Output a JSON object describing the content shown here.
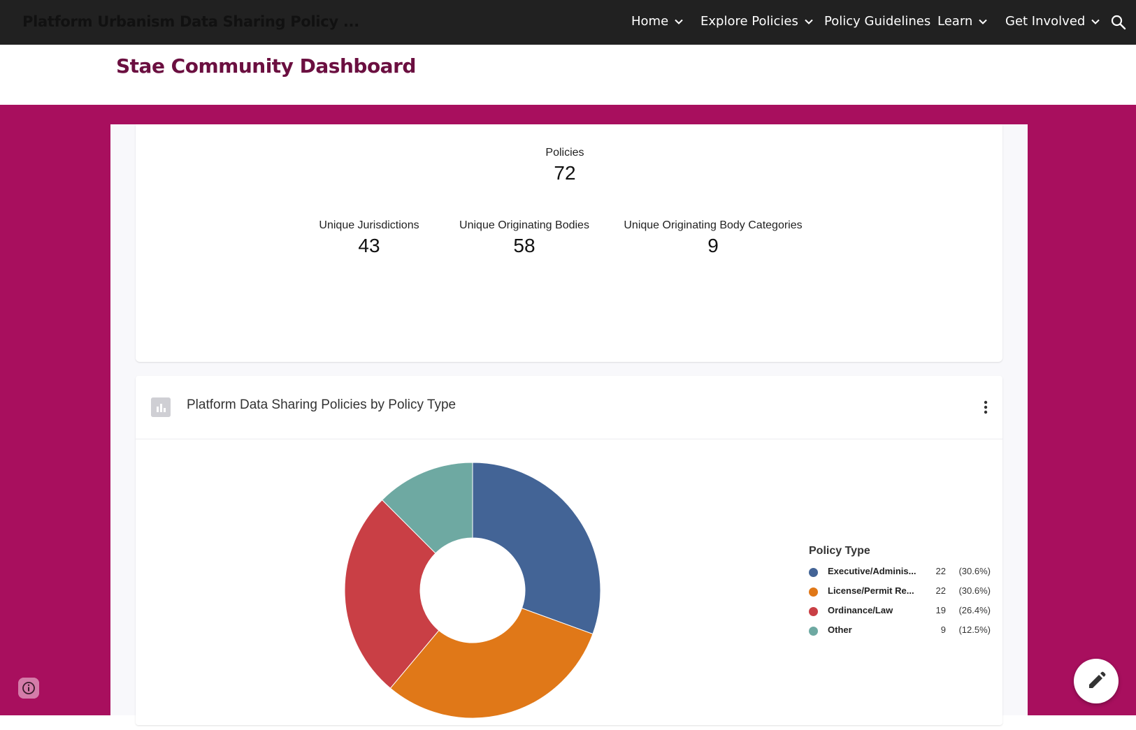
{
  "site": {
    "title": "Platform Urbanism Data Sharing Policy ..."
  },
  "nav": {
    "items": [
      {
        "label": "Home",
        "has_menu": true
      },
      {
        "label": "Explore Policies",
        "has_menu": true
      },
      {
        "label": "Policy Guidelines",
        "has_menu": false
      },
      {
        "label": "Learn",
        "has_menu": true
      },
      {
        "label": "Get Involved",
        "has_menu": true
      }
    ],
    "search_icon": "search-icon"
  },
  "page": {
    "title": "Stae Community Dashboard"
  },
  "stats": {
    "policies": {
      "label": "Policies",
      "value": "72"
    },
    "jurisdictions": {
      "label": "Unique Jurisdictions",
      "value": "43"
    },
    "bodies": {
      "label": "Unique Originating Bodies",
      "value": "58"
    },
    "body_categories": {
      "label": "Unique Originating Body Categories",
      "value": "9"
    }
  },
  "chart_card": {
    "title": "Platform Data Sharing Policies by Policy Type",
    "icon": "bar-chart-icon",
    "menu_icon": "more-vert-icon"
  },
  "chart_data": {
    "type": "pie",
    "donut": true,
    "legend_title": "Policy Type",
    "legend_placement": "right",
    "slices": [
      {
        "label": "Executive/Adminis...",
        "value": 22,
        "percent": "(30.6%)",
        "color": "#436496"
      },
      {
        "label": "License/Permit Re...",
        "value": 22,
        "percent": "(30.6%)",
        "color": "#e07818"
      },
      {
        "label": "Ordinance/Law",
        "value": 19,
        "percent": "(26.4%)",
        "color": "#c93f45"
      },
      {
        "label": "Other",
        "value": 9,
        "percent": "(12.5%)",
        "color": "#6ea9a2"
      }
    ]
  },
  "colors": {
    "nav_bg": "#212121",
    "accent": "#a80f5e",
    "title": "#6b0f40"
  },
  "widgets": {
    "info_icon": "info-icon",
    "edit_icon": "edit-pencil-icon"
  }
}
